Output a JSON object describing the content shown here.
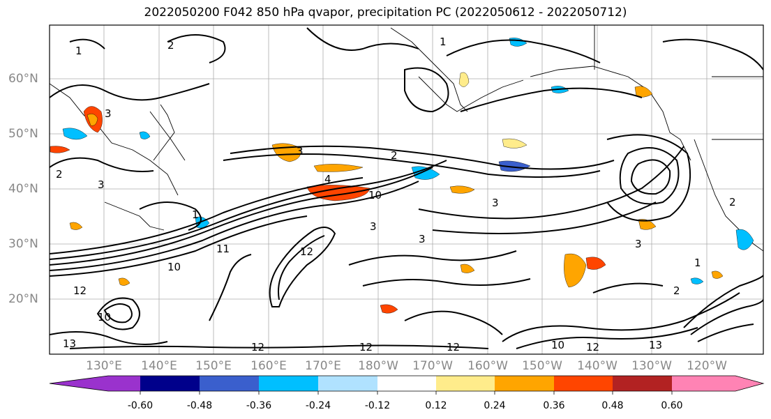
{
  "title": "2022050200 F042 850 hPa qvapor, precipitation PC (2022050612 - 2022050712)",
  "lat_labels": [
    "60°N",
    "50°N",
    "40°N",
    "30°N",
    "20°N"
  ],
  "lon_labels": [
    "130°E",
    "140°E",
    "150°E",
    "160°E",
    "170°E",
    "180°W",
    "170°W",
    "160°W",
    "150°W",
    "140°W",
    "130°W",
    "120°W"
  ],
  "colorbar": {
    "colors": [
      "#9a32cd",
      "#00008b",
      "#3a5fcd",
      "#00bfff",
      "#b0e2ff",
      "#ffffff",
      "#ffec8b",
      "#ffa500",
      "#ff4500",
      "#b22222",
      "#ff83b4"
    ],
    "tick_labels": [
      "-0.60",
      "-0.48",
      "-0.36",
      "-0.24",
      "-0.12",
      "0.12",
      "0.24",
      "0.36",
      "0.48",
      "0.60"
    ]
  },
  "contour_labels": [
    "3",
    "3",
    "2",
    "2",
    "1",
    "1",
    "3",
    "4",
    "10",
    "3",
    "12",
    "11",
    "10",
    "12",
    "10",
    "12",
    "12",
    "13",
    "2",
    "2",
    "1",
    "3",
    "3",
    "3",
    "1",
    "2",
    "12",
    "10",
    "13",
    "12"
  ]
}
